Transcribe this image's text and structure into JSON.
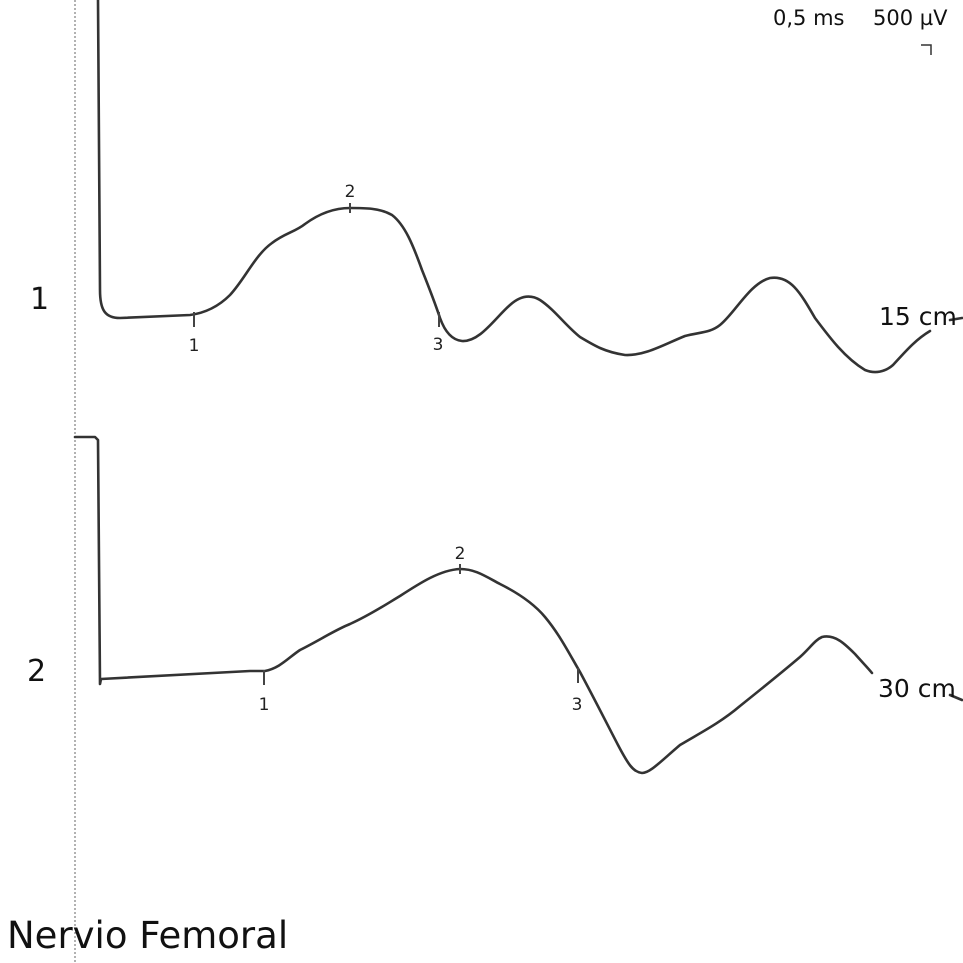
{
  "chart_data": {
    "type": "line",
    "title": "Nervio Femoral",
    "scale": {
      "time": "0,5 ms",
      "amplitude": "500 µV"
    },
    "grid": false,
    "traces": [
      {
        "label": "1",
        "distance": "15 cm",
        "cursors": [
          {
            "label": "1",
            "ms": 1.54
          },
          {
            "label": "2",
            "ms": 4.12
          },
          {
            "label": "3",
            "ms": 5.71
          }
        ]
      },
      {
        "label": "2",
        "distance": "30 cm",
        "cursors": [
          {
            "label": "1",
            "ms": 2.69
          },
          {
            "label": "2",
            "ms": 5.86
          },
          {
            "label": "3",
            "ms": 7.83
          }
        ]
      }
    ]
  }
}
